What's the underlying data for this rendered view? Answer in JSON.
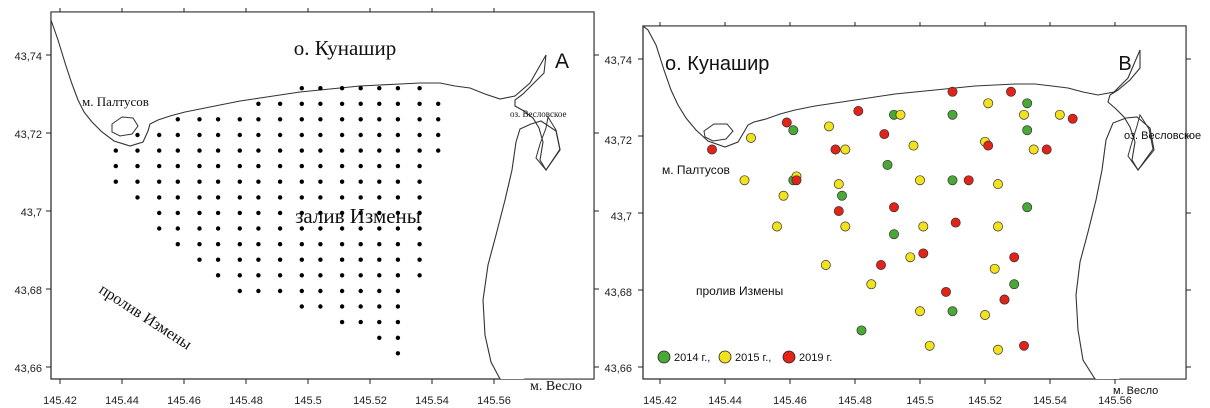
{
  "map_a": {
    "panel_letter": "A",
    "island": "о. Кунашир",
    "cape_paltusov": "м. Палтусов",
    "lake": "оз. Весловское",
    "bay": "залив Измены",
    "strait": "пролив Измены",
    "cape_veslo": "м. Весло",
    "y_ticks": [
      "43,74",
      "43,72",
      "43,7",
      "43,68",
      "43,66"
    ],
    "x_ticks": [
      "145.42",
      "145.44",
      "145.46",
      "145.48",
      "145.5",
      "145.52",
      "145.54",
      "145.56"
    ]
  },
  "map_b": {
    "panel_letter": "B",
    "island": "о. Кунашир",
    "cape_paltusov": "м. Палтусов",
    "lake": "оз. Весловское",
    "strait": "пролив Измены",
    "cape_veslo": "м. Весло",
    "y_ticks": [
      "43,74",
      "43,72",
      "43,7",
      "43,68",
      "43,66"
    ],
    "x_ticks": [
      "145.42",
      "145.44",
      "145.46",
      "145.48",
      "145.5",
      "145.52",
      "145.54",
      "145.56"
    ],
    "legend": [
      {
        "label": "2014 г.,",
        "color": "#4aa836"
      },
      {
        "label": "2015 г.,",
        "color": "#f2e21c"
      },
      {
        "label": "2019 г.",
        "color": "#e2231a"
      }
    ]
  },
  "chart_data": [
    {
      "type": "scatter",
      "panel": "A",
      "xlim": [
        145.42,
        145.56
      ],
      "ylim": [
        43.66,
        43.74
      ],
      "grid_rows": [
        {
          "lat": 43.7315,
          "lons": [
            145.498,
            145.504,
            145.511,
            145.517,
            145.523,
            145.529,
            145.536
          ]
        },
        {
          "lat": 43.7275,
          "lons": [
            145.484,
            145.491,
            145.498,
            145.504,
            145.511,
            145.517,
            145.523,
            145.529,
            145.536,
            145.542
          ]
        },
        {
          "lat": 43.7235,
          "lons": [
            145.458,
            145.465,
            145.471,
            145.478,
            145.484,
            145.491,
            145.498,
            145.504,
            145.511,
            145.517,
            145.523,
            145.529,
            145.536,
            145.542
          ]
        },
        {
          "lat": 43.7195,
          "lons": [
            145.445,
            145.452,
            145.458,
            145.465,
            145.471,
            145.478,
            145.484,
            145.491,
            145.498,
            145.504,
            145.511,
            145.517,
            145.523,
            145.529,
            145.536,
            145.542
          ]
        },
        {
          "lat": 43.7155,
          "lons": [
            145.438,
            145.445,
            145.452,
            145.458,
            145.465,
            145.471,
            145.478,
            145.484,
            145.491,
            145.498,
            145.504,
            145.511,
            145.517,
            145.523,
            145.529,
            145.536,
            145.542
          ]
        },
        {
          "lat": 43.7115,
          "lons": [
            145.438,
            145.445,
            145.452,
            145.458,
            145.465,
            145.471,
            145.478,
            145.484,
            145.491,
            145.498,
            145.504,
            145.511,
            145.517,
            145.523,
            145.529,
            145.536
          ]
        },
        {
          "lat": 43.7075,
          "lons": [
            145.438,
            145.445,
            145.452,
            145.458,
            145.465,
            145.471,
            145.478,
            145.484,
            145.491,
            145.498,
            145.504,
            145.511,
            145.517,
            145.523,
            145.529,
            145.536
          ]
        },
        {
          "lat": 43.7035,
          "lons": [
            145.445,
            145.452,
            145.458,
            145.465,
            145.471,
            145.478,
            145.484,
            145.491,
            145.498,
            145.504,
            145.511,
            145.517,
            145.523,
            145.529,
            145.536
          ]
        },
        {
          "lat": 43.6995,
          "lons": [
            145.452,
            145.458,
            145.465,
            145.471,
            145.478,
            145.484,
            145.491,
            145.498,
            145.504,
            145.511,
            145.517,
            145.523,
            145.529,
            145.536
          ]
        },
        {
          "lat": 43.6955,
          "lons": [
            145.452,
            145.458,
            145.465,
            145.471,
            145.478,
            145.484,
            145.491,
            145.498,
            145.504,
            145.511,
            145.517,
            145.523,
            145.529,
            145.536
          ]
        },
        {
          "lat": 43.6915,
          "lons": [
            145.458,
            145.465,
            145.471,
            145.478,
            145.484,
            145.491,
            145.498,
            145.504,
            145.511,
            145.517,
            145.523,
            145.529,
            145.536
          ]
        },
        {
          "lat": 43.6875,
          "lons": [
            145.465,
            145.471,
            145.478,
            145.484,
            145.491,
            145.498,
            145.504,
            145.511,
            145.517,
            145.523,
            145.529,
            145.536
          ]
        },
        {
          "lat": 43.6835,
          "lons": [
            145.471,
            145.478,
            145.484,
            145.491,
            145.498,
            145.504,
            145.511,
            145.517,
            145.523,
            145.529,
            145.536
          ]
        },
        {
          "lat": 43.6795,
          "lons": [
            145.478,
            145.484,
            145.491,
            145.498,
            145.504,
            145.511,
            145.517,
            145.523,
            145.529
          ]
        },
        {
          "lat": 43.6755,
          "lons": [
            145.498,
            145.504,
            145.511,
            145.517,
            145.523,
            145.529
          ]
        },
        {
          "lat": 43.6715,
          "lons": [
            145.511,
            145.517,
            145.523,
            145.529
          ]
        },
        {
          "lat": 43.6675,
          "lons": [
            145.523,
            145.529
          ]
        },
        {
          "lat": 43.6635,
          "lons": [
            145.529
          ]
        }
      ]
    },
    {
      "type": "scatter",
      "panel": "B",
      "xlim": [
        145.42,
        145.56
      ],
      "ylim": [
        43.66,
        43.74
      ],
      "series": [
        {
          "name": "2014 г.",
          "color": "#4aa836",
          "points": [
            [
              145.461,
              43.7215
            ],
            [
              145.492,
              43.7255
            ],
            [
              145.51,
              43.7255
            ],
            [
              145.533,
              43.7285
            ],
            [
              145.533,
              43.7215
            ],
            [
              145.461,
              43.7085
            ],
            [
              145.476,
              43.7045
            ],
            [
              145.49,
              43.7125
            ],
            [
              145.51,
              43.7085
            ],
            [
              145.533,
              43.7015
            ],
            [
              145.492,
              43.6945
            ],
            [
              145.482,
              43.6695
            ],
            [
              145.51,
              43.6745
            ],
            [
              145.529,
              43.6815
            ]
          ]
        },
        {
          "name": "2015 г.",
          "color": "#f2e21c",
          "points": [
            [
              145.448,
              43.7195
            ],
            [
              145.472,
              43.7225
            ],
            [
              145.494,
              43.7255
            ],
            [
              145.521,
              43.7285
            ],
            [
              145.532,
              43.7255
            ],
            [
              145.543,
              43.7255
            ],
            [
              145.535,
              43.7165
            ],
            [
              145.52,
              43.7185
            ],
            [
              145.498,
              43.7175
            ],
            [
              145.477,
              43.7165
            ],
            [
              145.446,
              43.7085
            ],
            [
              145.462,
              43.7095
            ],
            [
              145.475,
              43.7075
            ],
            [
              145.458,
              43.7045
            ],
            [
              145.5,
              43.7085
            ],
            [
              145.524,
              43.7075
            ],
            [
              145.456,
              43.6965
            ],
            [
              145.477,
              43.6965
            ],
            [
              145.501,
              43.6965
            ],
            [
              145.524,
              43.6965
            ],
            [
              145.471,
              43.6865
            ],
            [
              145.497,
              43.6885
            ],
            [
              145.523,
              43.6855
            ],
            [
              145.485,
              43.6815
            ],
            [
              145.526,
              43.6775
            ],
            [
              145.5,
              43.6745
            ],
            [
              145.52,
              43.6735
            ],
            [
              145.503,
              43.6655
            ],
            [
              145.524,
              43.6645
            ]
          ]
        },
        {
          "name": "2019 г.",
          "color": "#e2231a",
          "points": [
            [
              145.51,
              43.7315
            ],
            [
              145.528,
              43.7315
            ],
            [
              145.459,
              43.7235
            ],
            [
              145.481,
              43.7265
            ],
            [
              145.489,
              43.7205
            ],
            [
              145.547,
              43.7245
            ],
            [
              145.436,
              43.7165
            ],
            [
              145.474,
              43.7165
            ],
            [
              145.521,
              43.7175
            ],
            [
              145.539,
              43.7165
            ],
            [
              145.462,
              43.7085
            ],
            [
              145.515,
              43.7085
            ],
            [
              145.475,
              43.7005
            ],
            [
              145.492,
              43.7015
            ],
            [
              145.511,
              43.6975
            ],
            [
              145.488,
              43.6865
            ],
            [
              145.501,
              43.6895
            ],
            [
              145.529,
              43.6885
            ],
            [
              145.508,
              43.6795
            ],
            [
              145.526,
              43.6775
            ],
            [
              145.532,
              43.6655
            ]
          ]
        }
      ]
    }
  ]
}
